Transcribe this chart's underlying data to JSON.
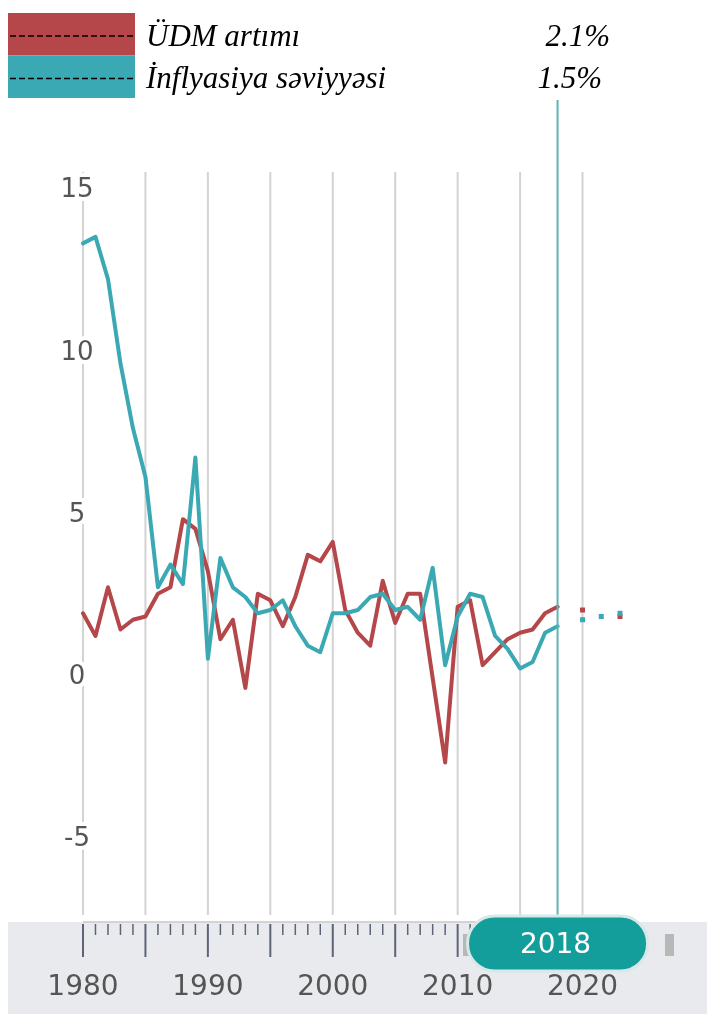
{
  "chart_data": {
    "type": "line",
    "x": [
      1980,
      1981,
      1982,
      1983,
      1984,
      1985,
      1986,
      1987,
      1988,
      1989,
      1990,
      1991,
      1992,
      1993,
      1994,
      1995,
      1996,
      1997,
      1998,
      1999,
      2000,
      2001,
      2002,
      2003,
      2004,
      2005,
      2006,
      2007,
      2008,
      2009,
      2010,
      2011,
      2012,
      2013,
      2014,
      2015,
      2016,
      2017,
      2018
    ],
    "series": [
      {
        "name": "ÜDM artımı",
        "color": "#b5474b",
        "values": [
          1.9,
          1.2,
          2.7,
          1.4,
          1.7,
          1.8,
          2.5,
          2.7,
          4.8,
          4.5,
          3.2,
          1.1,
          1.7,
          -0.4,
          2.5,
          2.3,
          1.5,
          2.4,
          3.7,
          3.5,
          4.1,
          2.0,
          1.3,
          0.9,
          2.9,
          1.6,
          2.5,
          2.5,
          -0.1,
          -2.7,
          2.1,
          2.3,
          0.3,
          0.7,
          1.1,
          1.3,
          1.4,
          1.9,
          2.1
        ]
      },
      {
        "name": "İnflyasiya səviyyəsi",
        "color": "#3aa9b4",
        "values": [
          13.3,
          13.5,
          12.2,
          9.6,
          7.6,
          6.1,
          2.7,
          3.4,
          2.8,
          6.7,
          0.5,
          3.6,
          2.7,
          2.4,
          1.9,
          2.0,
          2.3,
          1.5,
          0.9,
          0.7,
          1.9,
          1.9,
          2.0,
          2.4,
          2.5,
          2.0,
          2.1,
          1.7,
          3.3,
          0.3,
          1.8,
          2.5,
          2.4,
          1.2,
          0.8,
          0.2,
          0.4,
          1.3,
          1.5
        ]
      },
      {
        "type": "scatter",
        "color": "#b5474b",
        "x": [
          2020,
          2023
        ],
        "values": [
          2.0,
          1.8
        ],
        "marker": "square"
      },
      {
        "type": "scatter",
        "color": "#3aa9b4",
        "x": [
          2020,
          2021.5,
          2023
        ],
        "values": [
          1.7,
          1.8,
          1.9
        ],
        "marker": "square"
      }
    ],
    "annotations": [
      "2.1%",
      "1.5%"
    ],
    "xlim": [
      1980,
      2023
    ],
    "ylim": [
      -7.4,
      15.5
    ],
    "xticks": [
      1980,
      {
        "value": 1981,
        "label": null
      },
      {
        "value": 1982,
        "label": null
      },
      {
        "value": 1983,
        "label": null
      },
      {
        "value": 1984,
        "label": null
      },
      {
        "value": 1985,
        "label": null
      },
      {
        "value": 1986,
        "label": null
      },
      {
        "value": 1987,
        "label": null
      },
      {
        "value": 1988,
        "label": null
      },
      {
        "value": 1989,
        "label": null
      },
      1990,
      {
        "value": 1991,
        "label": null
      },
      {
        "value": 1992,
        "label": null
      },
      {
        "value": 1993,
        "label": null
      },
      {
        "value": 1994,
        "label": null
      },
      {
        "value": 1995,
        "label": null
      },
      {
        "value": 1996,
        "label": null
      },
      {
        "value": 1997,
        "label": null
      },
      {
        "value": 1998,
        "label": null
      },
      {
        "value": 1999,
        "label": null
      },
      2000,
      {
        "value": 2001,
        "label": null
      },
      {
        "value": 2002,
        "label": null
      },
      {
        "value": 2003,
        "label": null
      },
      {
        "value": 2004,
        "label": null
      },
      {
        "value": 2005,
        "label": null
      },
      {
        "value": 2006,
        "label": null
      },
      {
        "value": 2007,
        "label": null
      },
      {
        "value": 2008,
        "label": null
      },
      {
        "value": 2009,
        "label": null
      },
      2010,
      {
        "value": 2011,
        "label": null
      },
      {
        "value": 2012,
        "label": null
      },
      {
        "value": 2013,
        "label": null
      },
      {
        "value": 2014,
        "label": null
      },
      {
        "value": 2015,
        "label": null
      },
      {
        "value": 2016,
        "label": null
      },
      {
        "value": 2017,
        "label": null
      },
      {
        "value": 2018,
        "label": null
      },
      {
        "value": 2019,
        "label": null
      },
      2020
    ],
    "yticks": [
      15,
      10,
      5,
      0,
      -5
    ],
    "grid": "x",
    "legend": "top left",
    "line_style": "solid",
    "marker": "none",
    "ref_lines": [
      {
        "axis": "x",
        "value": 2018,
        "label": "2018",
        "color": "#5fb3b3"
      }
    ]
  }
}
